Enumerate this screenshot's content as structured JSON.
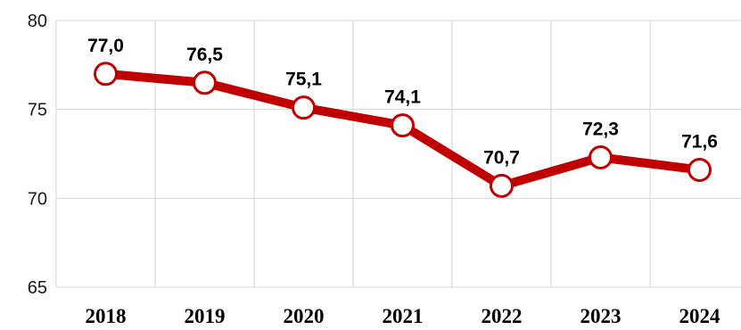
{
  "chart_data": {
    "type": "line",
    "title": "",
    "xlabel": "",
    "ylabel": "",
    "categories": [
      "2018",
      "2019",
      "2020",
      "2021",
      "2022",
      "2023",
      "2024"
    ],
    "series": [
      {
        "values": [
          77.0,
          76.5,
          75.1,
          74.1,
          70.7,
          72.3,
          71.6
        ],
        "labels": [
          "77,0",
          "76,5",
          "75,1",
          "74,1",
          "70,7",
          "72,3",
          "71,6"
        ],
        "color": "#c00000",
        "marker_fill": "#ffffff"
      }
    ],
    "ylim": [
      65,
      80
    ],
    "yticks": [
      65,
      70,
      75,
      80
    ],
    "ytick_labels": [
      "65",
      "70",
      "75",
      "80"
    ],
    "grid": true,
    "legend": "none",
    "colors": {
      "grid": "#d6d6d6",
      "line": "#c00000",
      "marker_fill": "#ffffff"
    }
  }
}
